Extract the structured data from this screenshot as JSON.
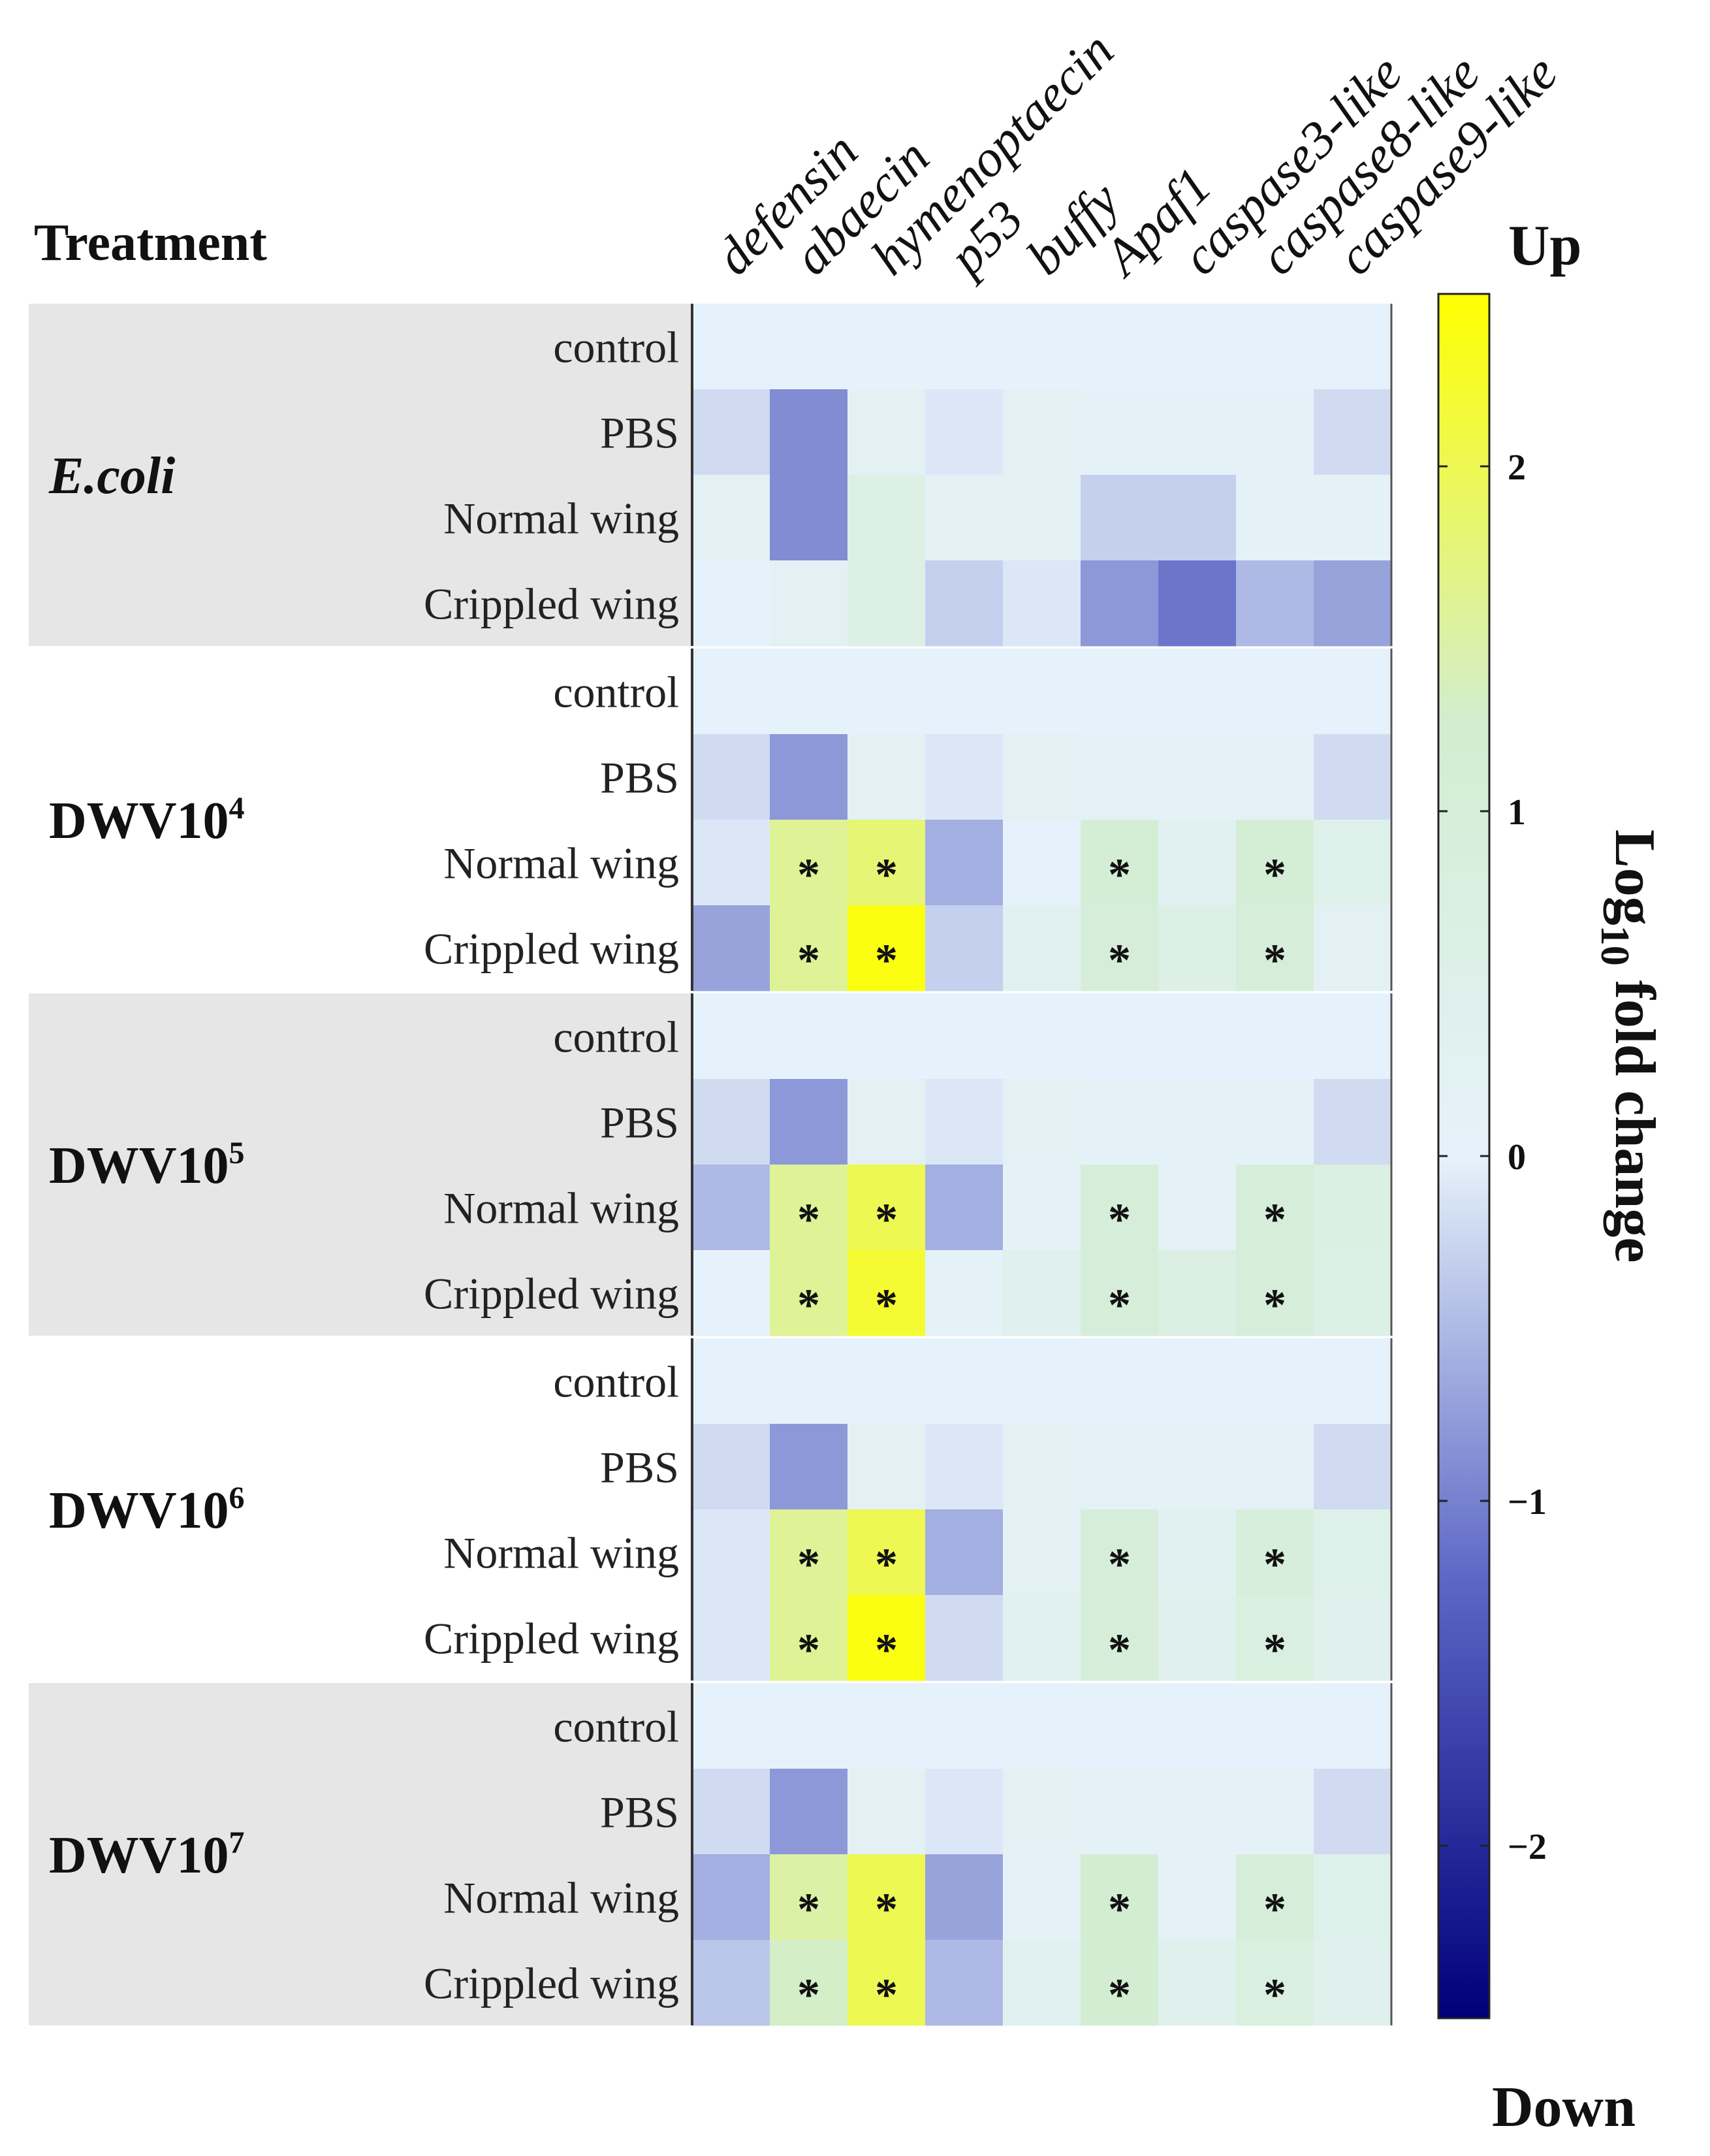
{
  "chart_data": {
    "type": "heatmap",
    "header_label": "Treatment",
    "genes": [
      "defensin",
      "abaecin",
      "hymenoptaecin",
      "p53",
      "buffy",
      "Apaf1",
      "caspase3-like",
      "caspase8-like",
      "caspase9-like"
    ],
    "row_labels": [
      "control",
      "PBS",
      "Normal wing",
      "Crippled wing"
    ],
    "colorbar": {
      "label_main": "Log",
      "label_sub": "10",
      "label_rest": " fold change",
      "top_label": "Up",
      "bottom_label": "Down",
      "range": [
        -2.5,
        2.5
      ],
      "ticks": [
        2,
        1,
        0,
        -1,
        -2
      ],
      "tick_labels": [
        "2",
        "1",
        "0",
        "−1",
        "−2"
      ],
      "colormap": [
        "#00007a",
        "#5a65c4",
        "#e6f2fb",
        "#d2edd0",
        "#ffff00"
      ]
    },
    "significance_marker": "*",
    "groups": [
      {
        "name": "E.coli",
        "base": "",
        "exp": "",
        "italic": true,
        "shaded": true,
        "values": [
          [
            0,
            0,
            0,
            0,
            0,
            0,
            0,
            0,
            0
          ],
          [
            -0.2,
            -0.9,
            0.2,
            -0.1,
            0.2,
            0.1,
            0.1,
            0.1,
            -0.2
          ],
          [
            0.2,
            -0.9,
            0.6,
            0.2,
            0.2,
            -0.3,
            -0.3,
            0.1,
            0.1
          ],
          [
            0,
            0.2,
            0.6,
            -0.3,
            -0.1,
            -0.8,
            -1.1,
            -0.5,
            -0.7
          ]
        ],
        "sig": [
          [],
          [],
          [],
          []
        ]
      },
      {
        "name": "",
        "base": "DWV10",
        "exp": "4",
        "italic": false,
        "shaded": false,
        "values": [
          [
            0,
            0,
            0,
            0,
            0,
            0,
            0,
            0,
            0
          ],
          [
            -0.2,
            -0.8,
            0.2,
            -0.1,
            0.2,
            0.1,
            0.1,
            0.1,
            -0.2
          ],
          [
            -0.1,
            1.6,
            1.8,
            -0.6,
            0,
            1.1,
            0.3,
            1.1,
            0.5
          ],
          [
            -0.7,
            1.6,
            2.4,
            -0.3,
            0.3,
            1.0,
            0.6,
            1.0,
            0.2
          ]
        ],
        "sig": [
          [],
          [],
          [
            1,
            2,
            5,
            7
          ],
          [
            1,
            2,
            5,
            7
          ]
        ]
      },
      {
        "name": "",
        "base": "DWV10",
        "exp": "5",
        "italic": false,
        "shaded": true,
        "values": [
          [
            0,
            0,
            0,
            0,
            0,
            0,
            0,
            0,
            0
          ],
          [
            -0.2,
            -0.8,
            0.2,
            -0.1,
            0.2,
            0.1,
            0.1,
            0.1,
            -0.2
          ],
          [
            -0.5,
            1.6,
            2.0,
            -0.6,
            0.1,
            1.0,
            0.1,
            1.0,
            0.7
          ],
          [
            0,
            1.6,
            2.2,
            0.1,
            0.4,
            1.0,
            0.7,
            1.0,
            0.6
          ]
        ],
        "sig": [
          [],
          [],
          [
            1,
            2,
            5,
            7
          ],
          [
            1,
            2,
            5,
            7
          ]
        ]
      },
      {
        "name": "",
        "base": "DWV10",
        "exp": "6",
        "italic": false,
        "shaded": false,
        "values": [
          [
            0,
            0,
            0,
            0,
            0,
            0,
            0,
            0,
            0
          ],
          [
            -0.2,
            -0.8,
            0.2,
            -0.1,
            0.2,
            0.1,
            0.1,
            0.1,
            -0.2
          ],
          [
            -0.1,
            1.6,
            2.0,
            -0.6,
            0.2,
            1.0,
            0.3,
            0.9,
            0.5
          ],
          [
            -0.1,
            1.6,
            2.4,
            -0.2,
            0.3,
            1.0,
            0.4,
            0.8,
            0.4
          ]
        ],
        "sig": [
          [],
          [],
          [
            1,
            2,
            5,
            7
          ],
          [
            1,
            2,
            5,
            7
          ]
        ]
      },
      {
        "name": "",
        "base": "DWV10",
        "exp": "7",
        "italic": false,
        "shaded": true,
        "values": [
          [
            0,
            0,
            0,
            0,
            0,
            0,
            0,
            0,
            0
          ],
          [
            -0.2,
            -0.8,
            0.2,
            -0.1,
            0.2,
            0.1,
            0.1,
            0.1,
            -0.2
          ],
          [
            -0.6,
            1.5,
            2.0,
            -0.7,
            0.1,
            1.2,
            0.1,
            1.0,
            0.5
          ],
          [
            -0.4,
            1.3,
            2.0,
            -0.5,
            0.3,
            1.2,
            0.4,
            0.8,
            0.4
          ]
        ],
        "sig": [
          [],
          [],
          [
            1,
            2,
            5,
            7
          ],
          [
            1,
            2,
            5,
            7
          ]
        ]
      }
    ]
  }
}
